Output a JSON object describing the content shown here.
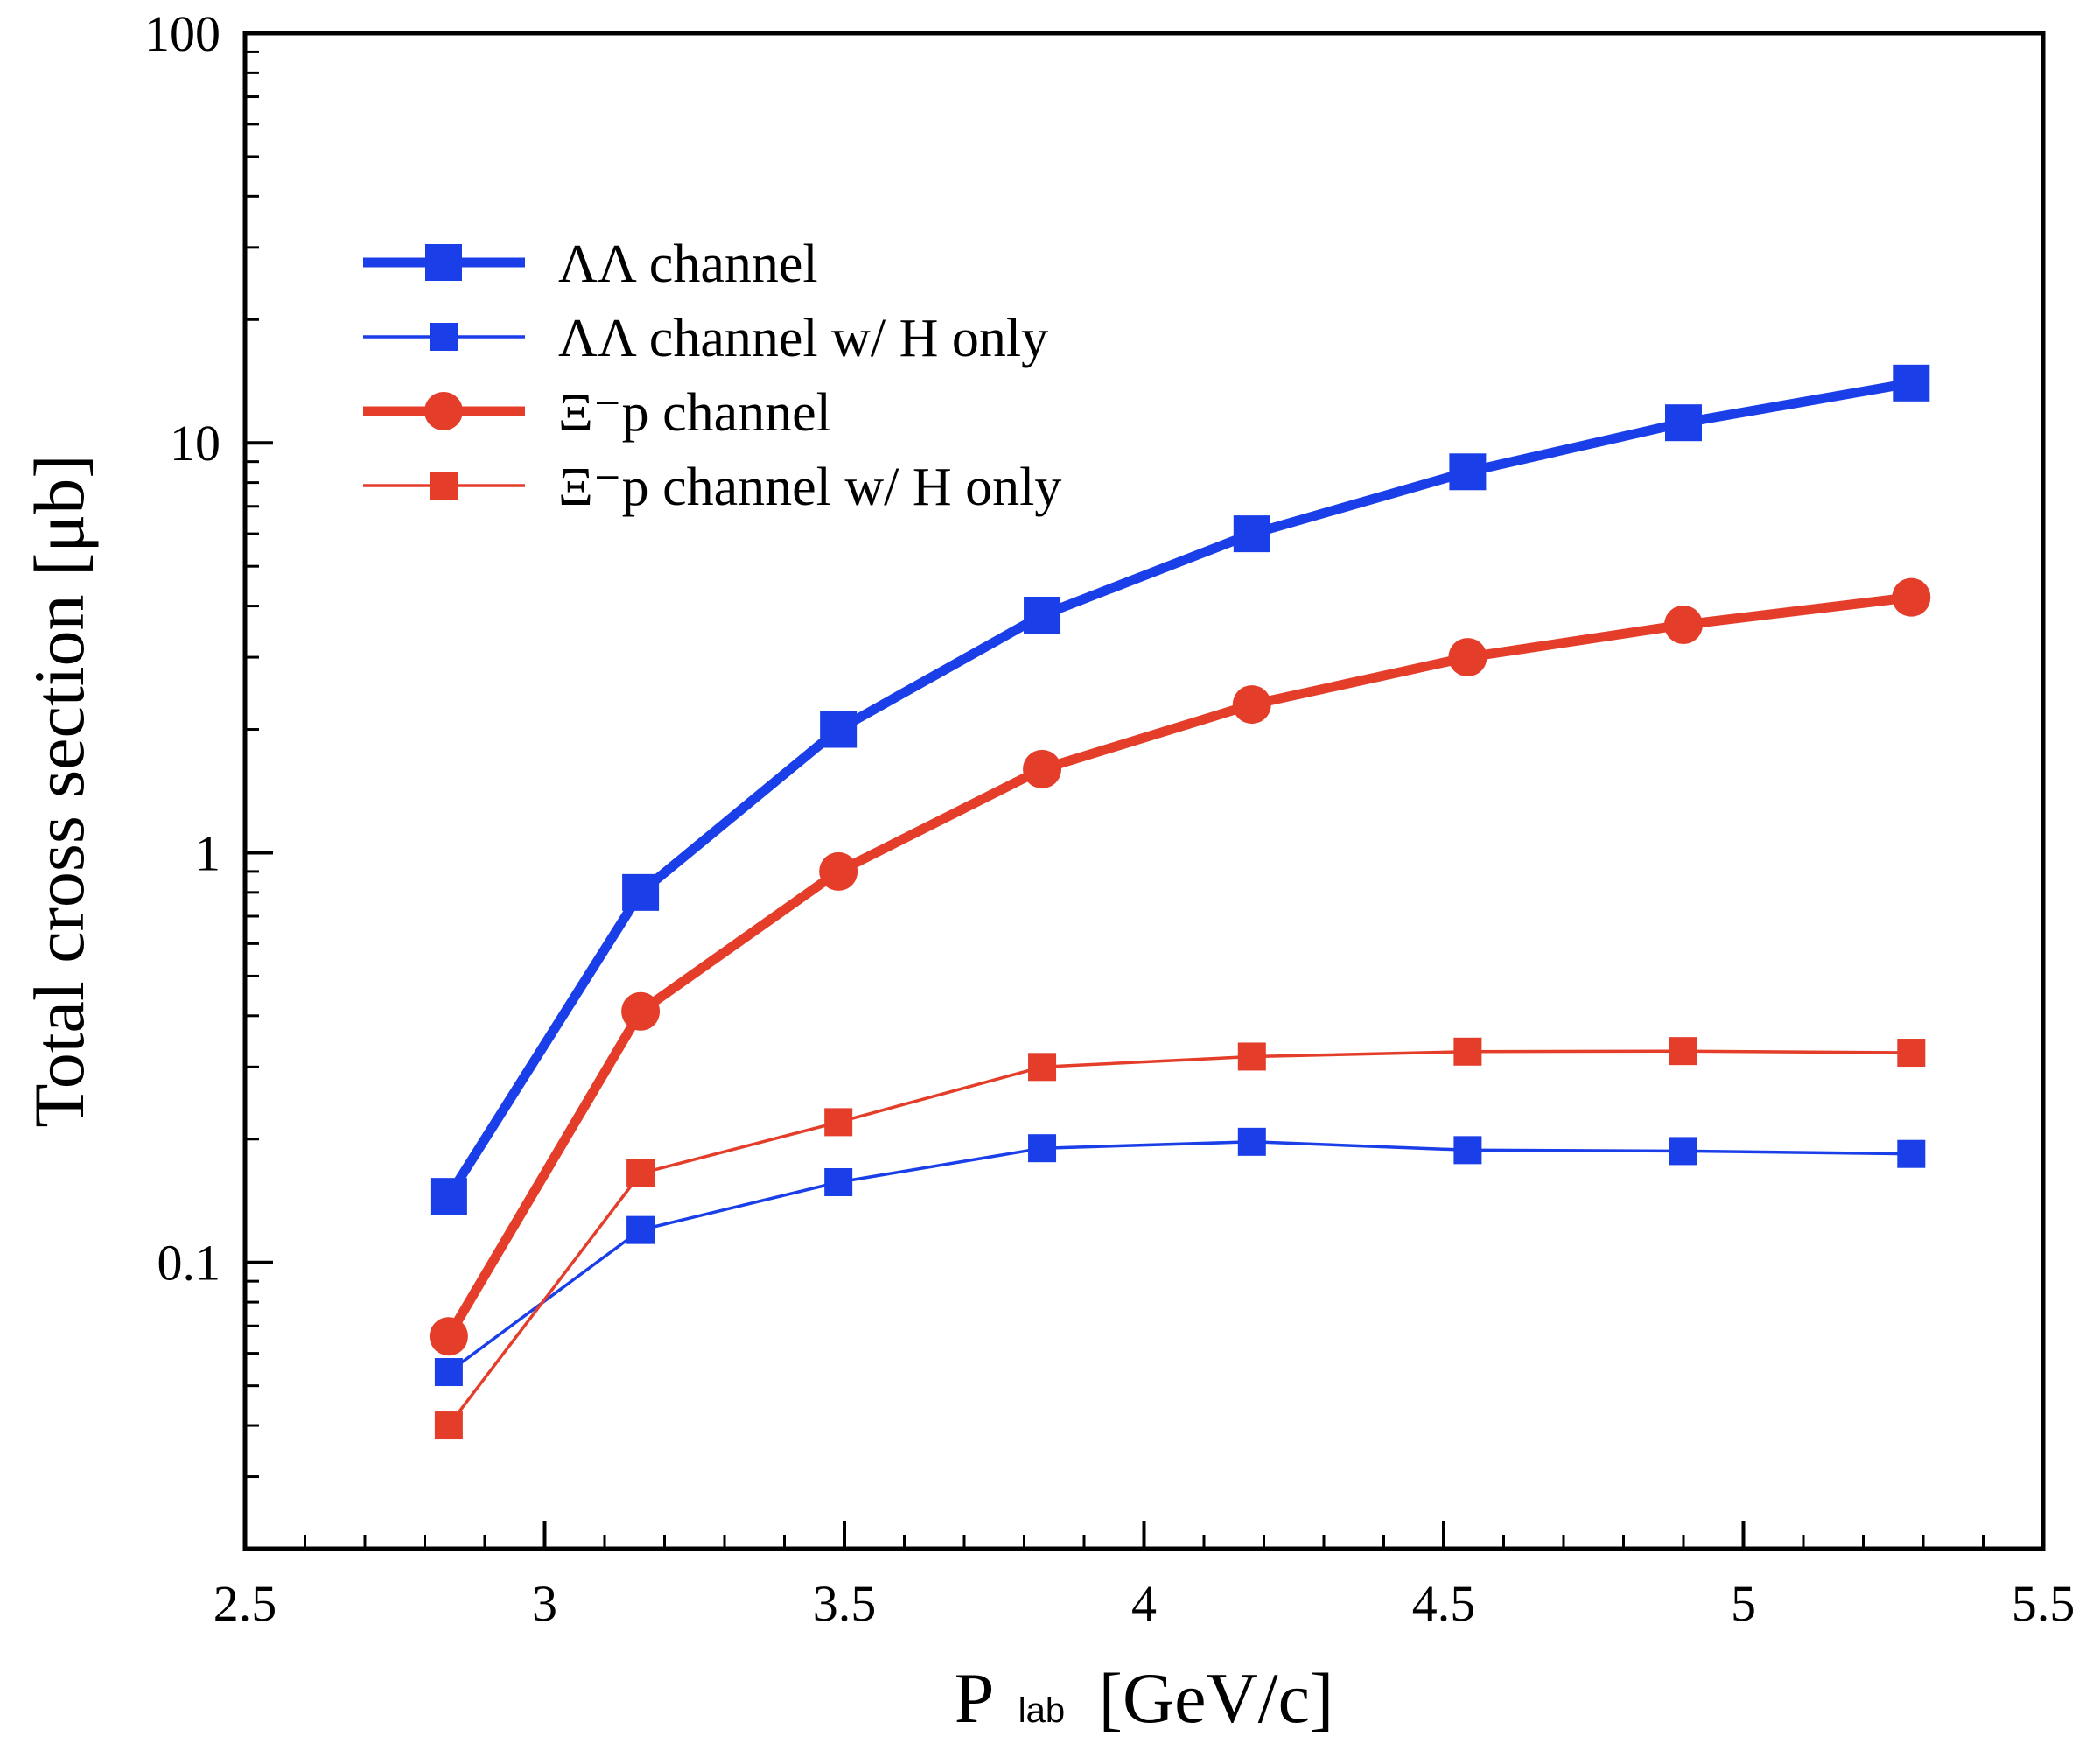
{
  "chart_data": {
    "type": "line",
    "title": "",
    "xlabel": {
      "main": "P",
      "sub": "lab",
      "unit": "[GeV/c]"
    },
    "ylabel": "Total cross section [μb]",
    "xlim": [
      2.5,
      5.5
    ],
    "ylim": [
      0.02,
      100
    ],
    "yscale": "log",
    "x_ticks": [
      "2.5",
      "3",
      "3.5",
      "4",
      "4.5",
      "5",
      "5.5"
    ],
    "x_tick_values": [
      2.5,
      3,
      3.5,
      4,
      4.5,
      5,
      5.5
    ],
    "y_ticks": [
      "0.1",
      "1",
      "10",
      "100"
    ],
    "y_tick_values": [
      0.1,
      1,
      10,
      100
    ],
    "grid": false,
    "legend_position": "top-left",
    "x": [
      2.84,
      3.16,
      3.49,
      3.83,
      4.18,
      4.54,
      4.9,
      5.28
    ],
    "series": [
      {
        "name": "ΛΛ channel",
        "color": "#1a3fe8",
        "marker": "square",
        "weight": "thick",
        "values": [
          0.145,
          0.8,
          2.0,
          3.8,
          6.0,
          8.5,
          11.2,
          14.0
        ]
      },
      {
        "name": "ΛΛ channel w/ H only",
        "color": "#1a3fe8",
        "marker": "square",
        "weight": "thin",
        "values": [
          0.054,
          0.12,
          0.157,
          0.19,
          0.197,
          0.188,
          0.187,
          0.184
        ]
      },
      {
        "name": "Ξ⁻p channel",
        "color": "#e43d2a",
        "marker": "circle",
        "weight": "thick",
        "values": [
          0.066,
          0.41,
          0.9,
          1.6,
          2.3,
          3.0,
          3.6,
          4.2
        ]
      },
      {
        "name": "Ξ⁻p channel w/ H only",
        "color": "#e43d2a",
        "marker": "square",
        "weight": "thin",
        "values": [
          0.04,
          0.165,
          0.22,
          0.3,
          0.318,
          0.327,
          0.328,
          0.325
        ]
      }
    ]
  }
}
